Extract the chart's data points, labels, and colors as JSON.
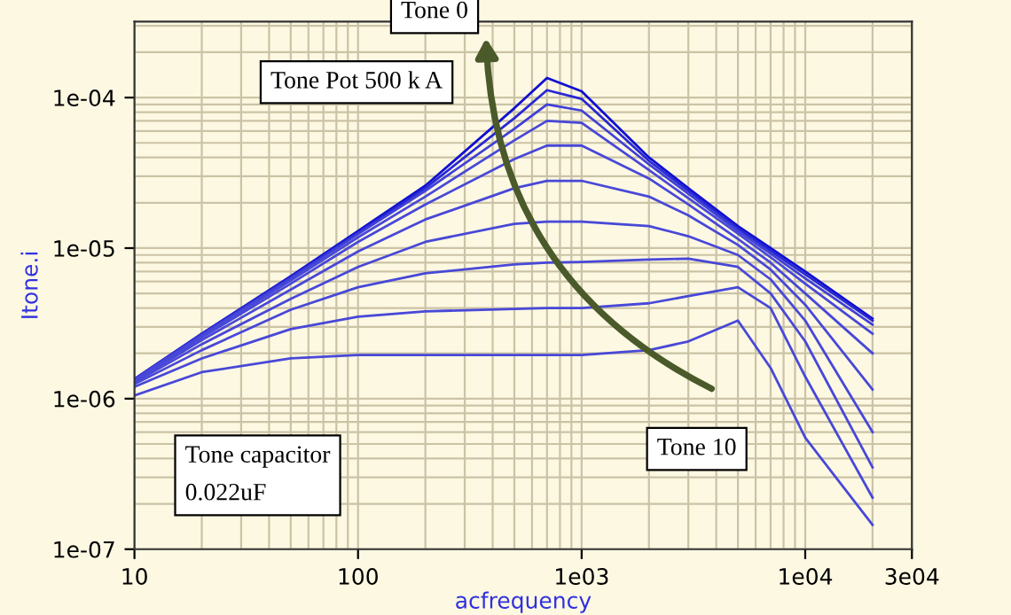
{
  "chart_data": {
    "type": "line",
    "xlabel": "acfrequency",
    "ylabel": "Itone.i",
    "annotations": [
      "Tone 0",
      "Tone Pot 500 k A",
      "Tone 10",
      "Tone capacitor\n0.022uF"
    ],
    "x": [
      10,
      20,
      50,
      100,
      200,
      500,
      700,
      1000,
      2000,
      3000,
      5000,
      7000,
      10000,
      20000
    ],
    "series": [
      {
        "color": "#1010d0",
        "values": [
          1.35e-06,
          2.7e-06,
          6.5e-06,
          1.3e-05,
          2.6e-05,
          8.5e-05,
          0.000135,
          0.00011,
          4e-05,
          2.5e-05,
          1.4e-05,
          1e-05,
          7e-06,
          3.4e-06
        ]
      },
      {
        "color": "#2828d4",
        "values": [
          1.35e-06,
          2.7e-06,
          6.4e-06,
          1.27e-05,
          2.5e-05,
          7.3e-05,
          0.000112,
          9.8e-05,
          3.8e-05,
          2.4e-05,
          1.35e-05,
          9.6e-06,
          6.7e-06,
          3.3e-06
        ]
      },
      {
        "color": "#4040d8",
        "values": [
          1.34e-06,
          2.65e-06,
          6.3e-06,
          1.24e-05,
          2.4e-05,
          6.2e-05,
          9e-05,
          8.2e-05,
          3.6e-05,
          2.3e-05,
          1.3e-05,
          9.2e-06,
          6.3e-06,
          3.1e-06
        ]
      },
      {
        "color": "#4848d8",
        "values": [
          1.33e-06,
          2.6e-06,
          6.1e-06,
          1.18e-05,
          2.2e-05,
          5.2e-05,
          7e-05,
          6.8e-05,
          3.3e-05,
          2.15e-05,
          1.25e-05,
          8.7e-06,
          5.8e-06,
          2.7e-06
        ]
      },
      {
        "color": "#4848d8",
        "values": [
          1.32e-06,
          2.55e-06,
          5.8e-06,
          1.1e-05,
          1.95e-05,
          3.9e-05,
          4.8e-05,
          4.8e-05,
          2.9e-05,
          1.95e-05,
          1.15e-05,
          8e-06,
          5e-06,
          2e-06
        ]
      },
      {
        "color": "#4848d8",
        "values": [
          1.3e-06,
          2.45e-06,
          5.3e-06,
          9.5e-06,
          1.55e-05,
          2.5e-05,
          2.8e-05,
          2.8e-05,
          2.2e-05,
          1.65e-05,
          1.05e-05,
          7.2e-06,
          4.2e-06,
          1.15e-06
        ]
      },
      {
        "color": "#4848d8",
        "values": [
          1.28e-06,
          2.3e-06,
          4.6e-06,
          7.5e-06,
          1.1e-05,
          1.45e-05,
          1.5e-05,
          1.5e-05,
          1.4e-05,
          1.2e-05,
          9e-06,
          6.2e-06,
          3.3e-06,
          6e-07
        ]
      },
      {
        "color": "#4848d8",
        "values": [
          1.25e-06,
          2.1e-06,
          3.9e-06,
          5.5e-06,
          6.8e-06,
          7.8e-06,
          8e-06,
          8.1e-06,
          8.4e-06,
          8.5e-06,
          7.5e-06,
          5e-06,
          2.4e-06,
          3.5e-07
        ]
      },
      {
        "color": "#4848d8",
        "values": [
          1.2e-06,
          1.85e-06,
          2.9e-06,
          3.5e-06,
          3.8e-06,
          3.95e-06,
          4e-06,
          4e-06,
          4.3e-06,
          4.8e-06,
          5.5e-06,
          4e-06,
          1.4e-06,
          2.2e-07
        ]
      },
      {
        "color": "#4848d8",
        "values": [
          1.05e-06,
          1.5e-06,
          1.85e-06,
          1.95e-06,
          1.95e-06,
          1.95e-06,
          1.95e-06,
          1.95e-06,
          2.1e-06,
          2.4e-06,
          3.3e-06,
          1.6e-06,
          5.5e-07,
          1.45e-07
        ]
      }
    ],
    "log": "xy",
    "xlim": [
      10,
      30000
    ],
    "xticks": [
      10,
      100,
      {
        "value": 1000,
        "label": "1e03"
      },
      {
        "value": 10000,
        "label": "1e04"
      },
      {
        "value": 30000,
        "label": "3e04"
      }
    ],
    "ylim": [
      1e-07,
      0.00032
    ],
    "yticks": [
      {
        "value": 1e-07,
        "label": "1e-07"
      },
      {
        "value": 1e-06,
        "label": "1e-06"
      },
      {
        "value": 1e-05,
        "label": "1e-05"
      },
      {
        "value": 0.0001,
        "label": "1e-04"
      }
    ],
    "grid": true,
    "legend": false,
    "marker": "none",
    "line_style": "solid"
  }
}
